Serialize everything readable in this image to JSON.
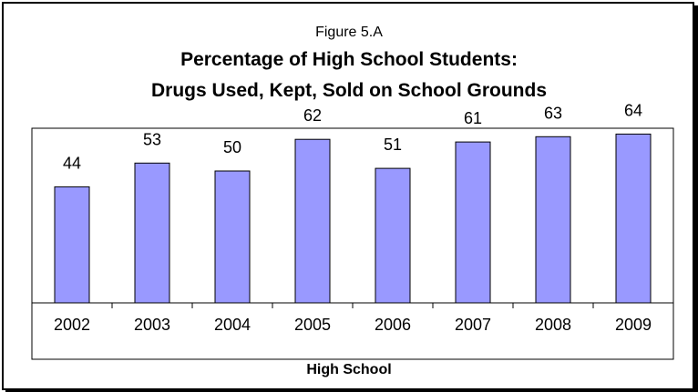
{
  "chart_data": {
    "type": "bar",
    "figure_label": "Figure 5.A",
    "title_line1": "Percentage of High School Students:",
    "title_line2": "Drugs Used, Kept, Sold on School Grounds",
    "xlabel": "High School",
    "ylabel": "",
    "categories": [
      "2002",
      "2003",
      "2004",
      "2005",
      "2006",
      "2007",
      "2008",
      "2009"
    ],
    "values": [
      44,
      53,
      50,
      62,
      51,
      61,
      63,
      64
    ],
    "ylim": [
      0,
      70
    ],
    "grid": false,
    "legend": "none",
    "colors": {
      "bar_fill": "#9999ff",
      "bar_stroke": "#000000",
      "frame": "#000000"
    }
  }
}
